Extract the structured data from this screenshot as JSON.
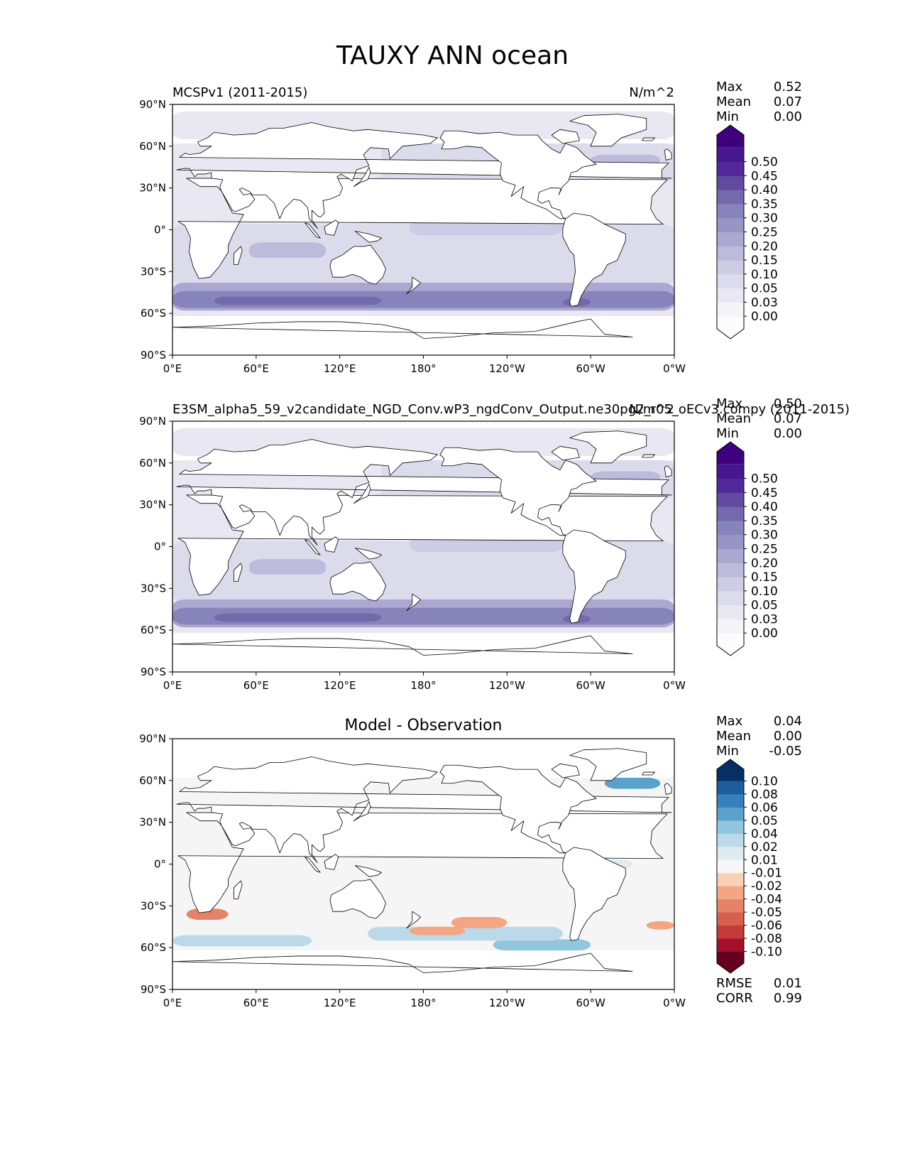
{
  "figure": {
    "title": "TAUXY ANN ocean"
  },
  "chart_data": [
    {
      "type": "heatmap",
      "name": "reference",
      "title_left": "MCSPv1 (2011-2015)",
      "title_center": "",
      "title_right": "N/m^2",
      "stats": {
        "labels": [
          "Max",
          "Mean",
          "Min"
        ],
        "values": [
          "0.52",
          "0.07",
          "0.00"
        ]
      },
      "colorbar": {
        "levels": [
          "0.00",
          "0.03",
          "0.05",
          "0.10",
          "0.15",
          "0.20",
          "0.25",
          "0.30",
          "0.35",
          "0.40",
          "0.45",
          "0.50"
        ],
        "colors": [
          "#fcfbfd",
          "#f4f3f8",
          "#e9e8f2",
          "#dcdbeb",
          "#cdcce4",
          "#bcbbdb",
          "#aaa8d0",
          "#9895c6",
          "#8784bb",
          "#7469ad",
          "#624a9f",
          "#53289a",
          "#46178f",
          "#3f007d"
        ]
      },
      "xticks": [
        "0°E",
        "60°E",
        "120°E",
        "180°",
        "120°W",
        "60°W",
        "0°W"
      ],
      "yticks": [
        "90°N",
        "60°N",
        "30°N",
        "0°",
        "30°S",
        "60°S",
        "90°S"
      ]
    },
    {
      "type": "heatmap",
      "name": "test",
      "title_left": "E3SM_alpha5_59_v2candidate_NGD_Conv.wP3_ngdConv_Output.ne30pg2_r05_oECv3.compy (2011-2015)",
      "title_center": "",
      "title_right": "N/m^2",
      "stats": {
        "labels": [
          "Max",
          "Mean",
          "Min"
        ],
        "values": [
          "0.50",
          "0.07",
          "0.00"
        ]
      },
      "colorbar": {
        "levels": [
          "0.00",
          "0.03",
          "0.05",
          "0.10",
          "0.15",
          "0.20",
          "0.25",
          "0.30",
          "0.35",
          "0.40",
          "0.45",
          "0.50"
        ],
        "colors": [
          "#fcfbfd",
          "#f4f3f8",
          "#e9e8f2",
          "#dcdbeb",
          "#cdcce4",
          "#bcbbdb",
          "#aaa8d0",
          "#9895c6",
          "#8784bb",
          "#7469ad",
          "#624a9f",
          "#53289a",
          "#46178f",
          "#3f007d"
        ]
      },
      "xticks": [
        "0°E",
        "60°E",
        "120°E",
        "180°",
        "120°W",
        "60°W",
        "0°W"
      ],
      "yticks": [
        "90°N",
        "60°N",
        "30°N",
        "0°",
        "30°S",
        "60°S",
        "90°S"
      ]
    },
    {
      "type": "heatmap",
      "name": "diff",
      "title_left": "",
      "title_center": "Model - Observation",
      "title_right": "",
      "stats": {
        "labels": [
          "Max",
          "Mean",
          "Min"
        ],
        "values": [
          "0.04",
          "0.00",
          "-0.05"
        ]
      },
      "metrics": {
        "labels": [
          "RMSE",
          "CORR"
        ],
        "values": [
          "0.01",
          "0.99"
        ]
      },
      "colorbar": {
        "levels": [
          "-0.10",
          "-0.08",
          "-0.06",
          "-0.05",
          "-0.04",
          "-0.02",
          "-0.01",
          "0.01",
          "0.02",
          "0.04",
          "0.05",
          "0.06",
          "0.08",
          "0.10"
        ],
        "colors": [
          "#67001f",
          "#a50f2a",
          "#c23a3a",
          "#d6604d",
          "#e58268",
          "#f4a582",
          "#fbd0b9",
          "#f7f7f7",
          "#deebf2",
          "#bcd9ea",
          "#92c5de",
          "#5aa2cb",
          "#3581bb",
          "#1f5e9e",
          "#053061"
        ]
      },
      "xticks": [
        "0°E",
        "60°E",
        "120°E",
        "180°",
        "120°W",
        "60°W",
        "0°W"
      ],
      "yticks": [
        "90°N",
        "60°N",
        "30°N",
        "0°",
        "30°S",
        "60°S",
        "90°S"
      ]
    }
  ]
}
